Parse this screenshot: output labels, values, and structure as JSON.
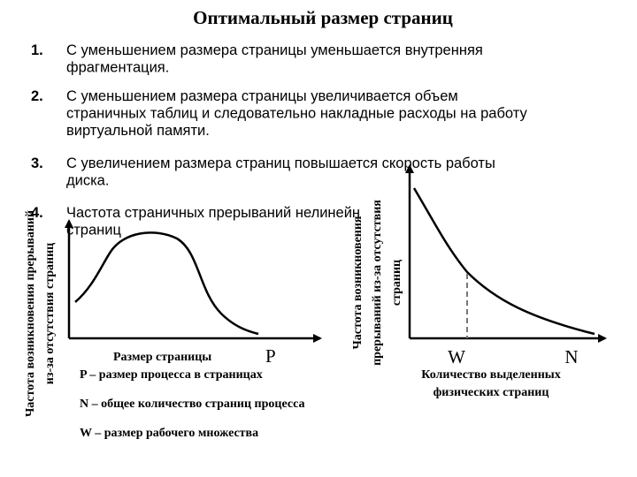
{
  "title": "Оптимальный размер страниц",
  "items": [
    {
      "number": "1.",
      "lines": [
        "С уменьшением размера страницы уменьшается внутренняя",
        "фрагментация."
      ]
    },
    {
      "number": "2.",
      "lines": [
        "С уменьшением размера страницы увеличивается объем",
        "страничных таблиц и следовательно накладные расходы на работу",
        "виртуальной памяти."
      ]
    },
    {
      "number": "3.",
      "lines": [
        "С увеличением размера страниц повышается скорость работы",
        "диска."
      ]
    },
    {
      "number": "4.",
      "lines": [
        "Частота страничных прерываний нелинейн",
        "страниц"
      ]
    }
  ],
  "left_chart": {
    "y_label": [
      "Частота возникновения прерываний",
      "из-за отсутствия страниц"
    ],
    "x_label": "Размер страницы",
    "x_marker": "P"
  },
  "right_chart": {
    "y_label": [
      "Частота возникновения",
      "прерываний из-за отсутствия",
      "страниц"
    ],
    "x_markers": [
      "W",
      "N"
    ],
    "x_label": [
      "Количество выделенных",
      "физических страниц"
    ]
  },
  "notes": [
    "P – размер процесса в страницах",
    "N – общее количество страниц процесса",
    "W – размер рабочего множества"
  ]
}
